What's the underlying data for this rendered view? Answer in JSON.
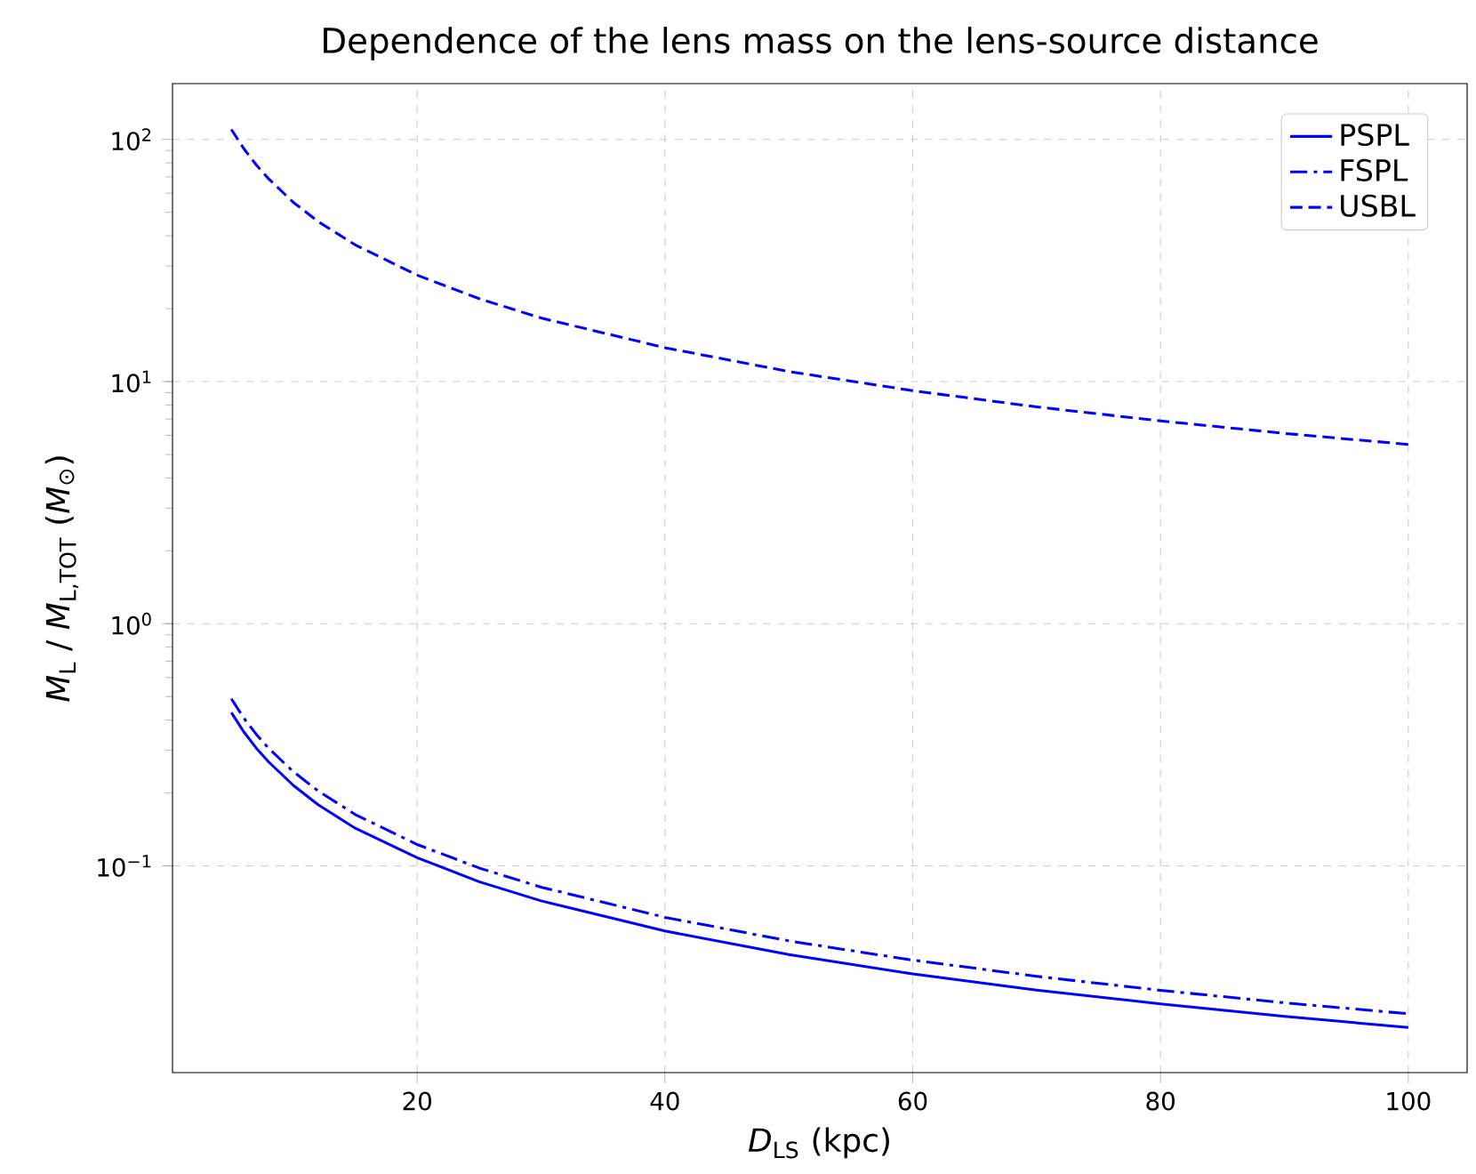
{
  "chart_data": {
    "type": "line",
    "title": "Dependence of the lens mass on the lens-source distance",
    "xlabel": "*D*$_{LS}$ (kpc)",
    "ylabel": "*M*$_{L}$ / *M*$_{L,TOT}$ (*M*$_{⊙}$)",
    "log": "y",
    "grid": true,
    "legend": "top right",
    "x": [
      5,
      6,
      7,
      8,
      10,
      12,
      15,
      20,
      25,
      30,
      40,
      50,
      60,
      70,
      80,
      90,
      100
    ],
    "xlim": [
      0.25,
      104.75
    ],
    "ylim": [
      0.014,
      170
    ],
    "xticks": [
      20,
      40,
      60,
      80,
      100
    ],
    "yticks": [
      {
        "value": 0.1,
        "label": "10$^{−1}$"
      },
      {
        "value": 1,
        "label": "10$^{0}$"
      },
      {
        "value": 10,
        "label": "10$^{1}$"
      },
      {
        "value": 100,
        "label": "10$^{2}$"
      }
    ],
    "series": [
      {
        "name": "PSPL",
        "color": "#0000ff",
        "line_style": "solid",
        "values": [
          0.43,
          0.358,
          0.307,
          0.269,
          0.215,
          0.179,
          0.143,
          0.108,
          0.086,
          0.0717,
          0.0538,
          0.043,
          0.0358,
          0.0307,
          0.0269,
          0.0239,
          0.0215
        ]
      },
      {
        "name": "FSPL",
        "color": "#0000ff",
        "line_style": "dashdot",
        "values": [
          0.49,
          0.408,
          0.35,
          0.306,
          0.245,
          0.204,
          0.163,
          0.1225,
          0.098,
          0.0817,
          0.0613,
          0.049,
          0.0408,
          0.035,
          0.0306,
          0.0272,
          0.0245
        ]
      },
      {
        "name": "USBL",
        "color": "#0000ff",
        "line_style": "dashed",
        "values": [
          110,
          91.7,
          78.6,
          68.8,
          55,
          45.8,
          36.7,
          27.5,
          22,
          18.3,
          13.8,
          11,
          9.17,
          7.86,
          6.88,
          6.11,
          5.5
        ]
      }
    ]
  }
}
